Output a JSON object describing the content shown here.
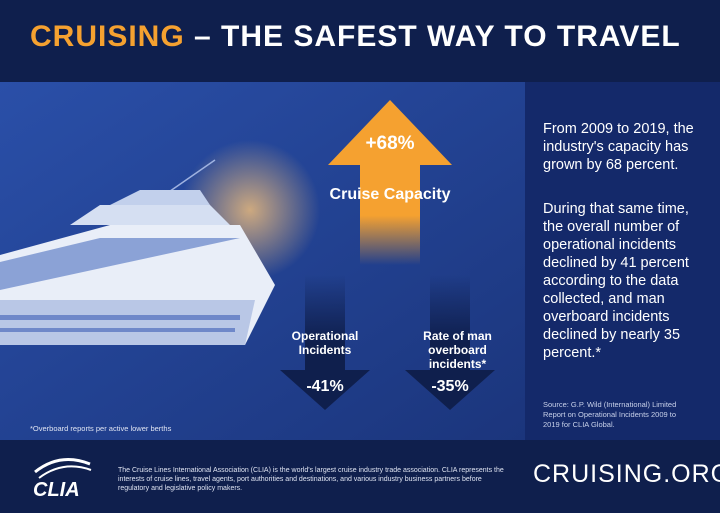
{
  "header": {
    "title_highlight": "CRUISING",
    "title_rest": " – THE SAFEST WAY TO TRAVEL"
  },
  "arrows": [
    {
      "value": "+68%",
      "label": "Cruise Capacity"
    },
    {
      "label": "Operational Incidents",
      "value": "-41%"
    },
    {
      "label": "Rate of man overboard incidents*",
      "value": "-35%"
    }
  ],
  "side": {
    "paragraphs": [
      "From 2009 to 2019, the industry's capacity has grown by 68 percent.",
      "During that same time, the overall number of operational incidents declined by 41 percent according to the data collected, and man overboard incidents declined by nearly 35 percent.*"
    ],
    "source": "Source: G.P. Wild (International) Limited Report on Operational Incidents 2009 to 2019 for CLIA Global."
  },
  "footnote": "*Overboard reports per active lower berths",
  "footer": {
    "logo": "CLIA",
    "text": "The Cruise Lines International Association (CLIA) is the world's largest cruise industry trade association. CLIA represents the interests of cruise lines, travel agents, port authorities and destinations, and various industry business partners before regulatory and legislative policy makers.",
    "site": "CRUISING.ORG"
  }
}
